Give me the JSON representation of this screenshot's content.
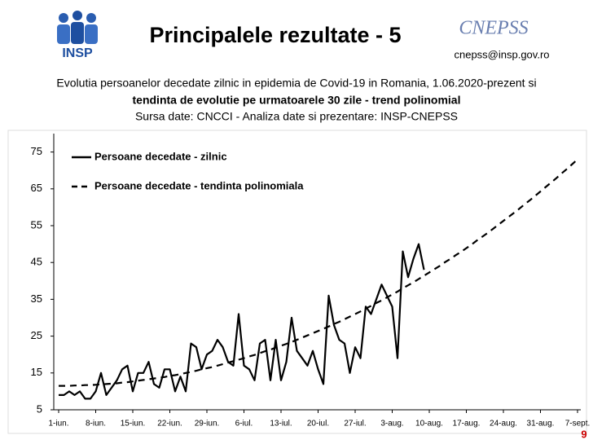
{
  "slide": {
    "title": "Principalele rezultate - 5",
    "logo_text": "INSP",
    "brand": "CNEPSS",
    "email": "cnepss@insp.gov.ro",
    "page_number": "9"
  },
  "chart_data": {
    "type": "line",
    "subtitle": [
      "Evolutia persoanelor decedate zilnic in epidemia de Covid-19 in Romania, 1.06.2020-prezent si",
      "tendinta de evolutie pe urmatoarele 30 zile - trend polinomial",
      "Sursa date: CNCCI  -  Analiza date si prezentare: INSP-CNEPSS"
    ],
    "categories": [
      "1-iun.",
      null,
      null,
      null,
      null,
      null,
      null,
      "8-iun.",
      null,
      null,
      null,
      null,
      null,
      null,
      "15-iun.",
      null,
      null,
      null,
      null,
      null,
      null,
      "22-iun.",
      null,
      null,
      null,
      null,
      null,
      null,
      "29-iun.",
      null,
      null,
      null,
      null,
      null,
      null,
      "6-iul.",
      null,
      null,
      null,
      null,
      null,
      null,
      "13-iul.",
      null,
      null,
      null,
      null,
      null,
      null,
      "20-iul.",
      null,
      null,
      null,
      null,
      null,
      null,
      "27-iul.",
      null,
      null,
      null,
      null,
      null,
      null,
      "3-aug.",
      null,
      null,
      null,
      null,
      null,
      null,
      "10-aug.",
      null,
      null,
      null,
      null,
      null,
      null,
      "17-aug.",
      null,
      null,
      null,
      null,
      null,
      null,
      "24-aug.",
      null,
      null,
      null,
      null,
      null,
      null,
      "31-aug.",
      null,
      null,
      null,
      null,
      null,
      null,
      "7-sept."
    ],
    "series": [
      {
        "name": "Persoane decedate - zilnic",
        "color": "#000000",
        "dash": false,
        "values": [
          9,
          9,
          10,
          9,
          10,
          8,
          8,
          10,
          15,
          9,
          11,
          13,
          16,
          17,
          10,
          15,
          15,
          18,
          12,
          11,
          16,
          16,
          10,
          14,
          10,
          23,
          22,
          16,
          20,
          21,
          24,
          22,
          18,
          17,
          31,
          17,
          16,
          13,
          23,
          24,
          13,
          24,
          13,
          18,
          30,
          21,
          19,
          17,
          21,
          16,
          12,
          36,
          28,
          24,
          23,
          15,
          22,
          19,
          33,
          31,
          35,
          39,
          36,
          33,
          19,
          48,
          41,
          46,
          50,
          43,
          null,
          null,
          null,
          null,
          null,
          null,
          null,
          null,
          null,
          null,
          null,
          null,
          null,
          null,
          null,
          null,
          null,
          null,
          null,
          null,
          null,
          null,
          null,
          null,
          null,
          null,
          null,
          null,
          null
        ]
      },
      {
        "name": "Persoane decedate - tendinta polinomiala",
        "color": "#000000",
        "dash": true,
        "values": [
          11.5,
          11.5,
          11.5,
          11.6,
          11.6,
          11.7,
          11.7,
          11.8,
          11.9,
          12.0,
          12.1,
          12.2,
          12.4,
          12.5,
          12.7,
          12.9,
          13.1,
          13.3,
          13.5,
          13.7,
          13.9,
          14.2,
          14.4,
          14.7,
          15.0,
          15.3,
          15.6,
          16.0,
          16.3,
          16.6,
          17.0,
          17.4,
          17.8,
          18.2,
          18.6,
          19.0,
          19.5,
          19.9,
          20.4,
          20.9,
          21.3,
          21.9,
          22.4,
          22.9,
          23.4,
          24.0,
          24.6,
          25.2,
          25.8,
          26.4,
          27.0,
          27.6,
          28.3,
          28.9,
          29.6,
          30.3,
          31.0,
          31.7,
          32.5,
          33.2,
          34.0,
          34.7,
          35.5,
          36.3,
          37.1,
          38.0,
          38.8,
          39.6,
          40.5,
          41.4,
          42.3,
          43.2,
          44.1,
          45.1,
          46.0,
          47.0,
          47.9,
          48.9,
          49.9,
          51.0,
          52.0,
          53.0,
          54.1,
          55.2,
          56.3,
          57.4,
          58.5,
          59.6,
          60.8,
          61.9,
          63.1,
          64.3,
          65.5,
          66.7,
          67.9,
          69.2,
          70.4,
          71.7,
          73.0
        ]
      }
    ],
    "ylim": [
      5,
      80
    ],
    "yticks": [
      5,
      15,
      25,
      35,
      45,
      55,
      65,
      75
    ],
    "grid": false,
    "legend": "top-left"
  }
}
